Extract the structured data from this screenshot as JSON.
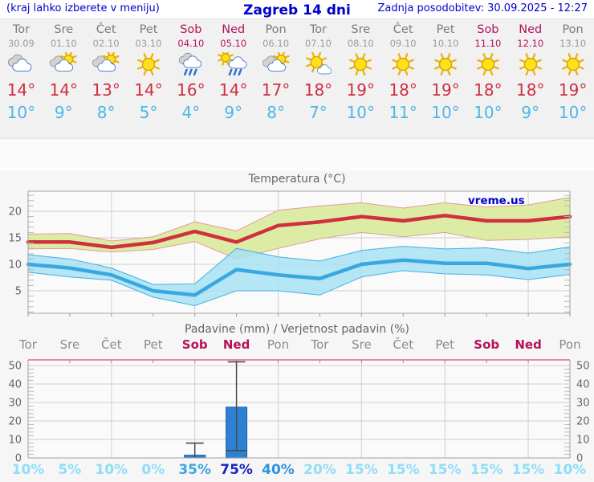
{
  "header": {
    "left": "(kraj lahko izberete v meniju)",
    "title": "Zagreb 14 dni",
    "updated": "Zadnja posodobitev: 30.09.2025 - 12:27"
  },
  "colors": {
    "accent_blue": "#0000cc",
    "weekend": "#b5125a",
    "red_line": "#d02f3f",
    "light_blue": "#4fb6e8",
    "band_warm": "#dceca5",
    "band_warm_edge": "#e39b9b",
    "band_cool": "#a7e2f3",
    "band_cool_edge": "#45afe2",
    "bar_blue": "#2e80d5",
    "pink_axis": "#e0688a",
    "grid": "#cfcfcf"
  },
  "days": [
    {
      "name": "Tor",
      "date": "30.09",
      "weekend": false,
      "icon": "cloudy",
      "tmax": "14°",
      "tmin": "10°"
    },
    {
      "name": "Sre",
      "date": "01.10",
      "weekend": false,
      "icon": "partly-cloudy",
      "tmax": "14°",
      "tmin": "9°"
    },
    {
      "name": "Čet",
      "date": "02.10",
      "weekend": false,
      "icon": "partly-cloudy",
      "tmax": "13°",
      "tmin": "8°"
    },
    {
      "name": "Pet",
      "date": "03.10",
      "weekend": false,
      "icon": "sunny",
      "tmax": "14°",
      "tmin": "5°"
    },
    {
      "name": "Sob",
      "date": "04.10",
      "weekend": true,
      "icon": "rain",
      "tmax": "16°",
      "tmin": "4°"
    },
    {
      "name": "Ned",
      "date": "05.10",
      "weekend": true,
      "icon": "sun-rain",
      "tmax": "14°",
      "tmin": "9°"
    },
    {
      "name": "Pon",
      "date": "06.10",
      "weekend": false,
      "icon": "partly-cloudy",
      "tmax": "17°",
      "tmin": "8°"
    },
    {
      "name": "Tor",
      "date": "07.10",
      "weekend": false,
      "icon": "mostly-sunny",
      "tmax": "18°",
      "tmin": "7°"
    },
    {
      "name": "Sre",
      "date": "08.10",
      "weekend": false,
      "icon": "sunny",
      "tmax": "19°",
      "tmin": "10°"
    },
    {
      "name": "Čet",
      "date": "09.10",
      "weekend": false,
      "icon": "sunny",
      "tmax": "18°",
      "tmin": "11°"
    },
    {
      "name": "Pet",
      "date": "10.10",
      "weekend": false,
      "icon": "sunny",
      "tmax": "19°",
      "tmin": "10°"
    },
    {
      "name": "Sob",
      "date": "11.10",
      "weekend": true,
      "icon": "sunny",
      "tmax": "18°",
      "tmin": "10°"
    },
    {
      "name": "Ned",
      "date": "12.10",
      "weekend": true,
      "icon": "sunny",
      "tmax": "18°",
      "tmin": "9°"
    },
    {
      "name": "Pon",
      "date": "13.10",
      "weekend": false,
      "icon": "sunny",
      "tmax": "19°",
      "tmin": "10°"
    }
  ],
  "chart_data": [
    {
      "type": "line",
      "title": "Temperatura (°C)",
      "watermark": "vreme.us",
      "categories": [
        "Tor",
        "Sre",
        "Čet",
        "Pet",
        "Sob",
        "Ned",
        "Pon",
        "Tor",
        "Sre",
        "Čet",
        "Pet",
        "Sob",
        "Ned",
        "Pon"
      ],
      "ylim": [
        0,
        24
      ],
      "yticks": [
        5,
        10,
        15,
        20
      ],
      "grid": true,
      "series": [
        {
          "name": "max_temp",
          "values": [
            14.2,
            14.2,
            13.2,
            14.1,
            16.2,
            14.2,
            17.3,
            18.0,
            19.0,
            18.2,
            19.2,
            18.2,
            18.2,
            19.0
          ]
        },
        {
          "name": "max_range_upper",
          "values": [
            15.7,
            15.8,
            14.4,
            15.2,
            18.0,
            16.3,
            20.2,
            21.0,
            21.6,
            20.6,
            21.6,
            20.8,
            21.2,
            22.6
          ]
        },
        {
          "name": "max_range_lower",
          "values": [
            12.9,
            13.0,
            12.3,
            12.8,
            14.3,
            11.0,
            13.0,
            14.8,
            16.0,
            15.2,
            16.0,
            14.5,
            14.7,
            15.2
          ]
        },
        {
          "name": "min_temp",
          "values": [
            10.0,
            9.3,
            8.0,
            5.0,
            4.2,
            9.0,
            8.0,
            7.3,
            10.0,
            10.8,
            10.2,
            10.2,
            9.2,
            10.0
          ]
        },
        {
          "name": "min_range_upper",
          "values": [
            11.8,
            11.0,
            9.3,
            6.2,
            6.3,
            13.0,
            11.4,
            10.6,
            12.6,
            13.4,
            12.9,
            13.1,
            12.1,
            13.3
          ]
        },
        {
          "name": "min_range_lower",
          "values": [
            8.5,
            7.6,
            7.0,
            3.8,
            2.2,
            5.0,
            5.0,
            4.2,
            7.6,
            8.8,
            8.2,
            8.0,
            7.1,
            8.1
          ]
        }
      ]
    },
    {
      "type": "bar",
      "title": "Padavine (mm) / Verjetnost padavin (%)",
      "categories": [
        "Tor",
        "Sre",
        "Čet",
        "Pet",
        "Sob",
        "Ned",
        "Pon",
        "Tor",
        "Sre",
        "Čet",
        "Pet",
        "Sob",
        "Ned",
        "Pon"
      ],
      "weekend": [
        false,
        false,
        false,
        false,
        true,
        true,
        false,
        false,
        false,
        false,
        false,
        true,
        true,
        false
      ],
      "values": [
        0,
        0,
        0,
        0,
        1.5,
        27.5,
        0,
        0,
        0,
        0,
        0,
        0,
        0,
        0
      ],
      "whiskers": [
        null,
        null,
        null,
        null,
        {
          "lo": 0,
          "hi": 8
        },
        {
          "lo": 4,
          "hi": 52
        },
        null,
        null,
        null,
        null,
        null,
        null,
        null,
        null
      ],
      "probabilities": [
        "10%",
        "5%",
        "10%",
        "0%",
        "35%",
        "75%",
        "40%",
        "20%",
        "15%",
        "15%",
        "15%",
        "15%",
        "15%",
        "10%"
      ],
      "prob_colors": [
        "#8edef7",
        "#8edef7",
        "#8edef7",
        "#8edef7",
        "#3aa6df",
        "#1823c0",
        "#2b94df",
        "#8edef7",
        "#8edef7",
        "#8edef7",
        "#8edef7",
        "#8edef7",
        "#8edef7",
        "#8edef7"
      ],
      "ylim": [
        0,
        52
      ],
      "yticks": [
        0,
        10,
        20,
        30,
        40,
        50
      ],
      "grid": true,
      "legend": "none"
    }
  ]
}
